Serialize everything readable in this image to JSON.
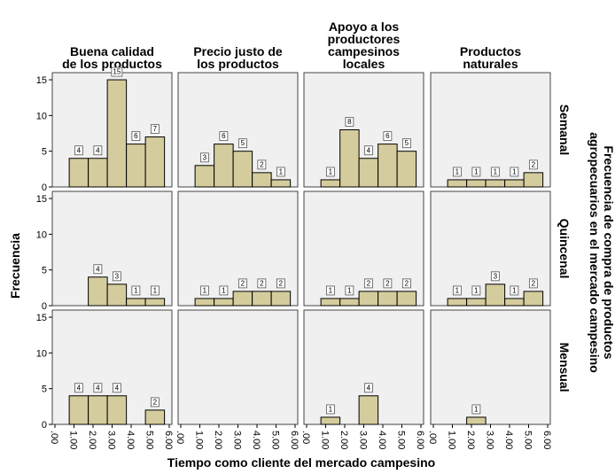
{
  "chart_data": {
    "type": "bar",
    "kind": "histogram-panel-grid",
    "xlabel": "Tiempo como cliente del mercado campesino",
    "ylabel": "Frecuencia",
    "row_group_title": [
      "Frecuencia de compra de productos",
      "agropecuarios en el mercado campesino"
    ],
    "columns": [
      {
        "title_lines": [
          "Buena calidad",
          "de los productos"
        ]
      },
      {
        "title_lines": [
          "Precio justo de",
          "los productos"
        ]
      },
      {
        "title_lines": [
          "Apoyo a los",
          "productores",
          "campesinos",
          "locales"
        ]
      },
      {
        "title_lines": [
          "Productos",
          "naturales"
        ]
      }
    ],
    "rows": [
      "Semanal",
      "Quincenal",
      "Mensual"
    ],
    "x_ticks": [
      ".00",
      "1.00",
      "2.00",
      "3.00",
      "4.00",
      "5.00",
      "6.00"
    ],
    "xlim": [
      0,
      6
    ],
    "y_ticks": [
      0,
      5,
      10,
      15
    ],
    "ylim": [
      0,
      16
    ],
    "bar_edges": [
      0.75,
      1.75,
      2.75,
      3.75,
      4.75,
      5.75
    ],
    "panels": [
      [
        [
          {
            "bin": 1,
            "value": 4
          },
          {
            "bin": 2,
            "value": 4
          },
          {
            "bin": 3,
            "value": 15
          },
          {
            "bin": 4,
            "value": 6
          },
          {
            "bin": 5,
            "value": 7
          }
        ],
        [
          {
            "bin": 1,
            "value": 3
          },
          {
            "bin": 2,
            "value": 6
          },
          {
            "bin": 3,
            "value": 5
          },
          {
            "bin": 4,
            "value": 2
          },
          {
            "bin": 5,
            "value": 1
          }
        ],
        [
          {
            "bin": 1,
            "value": 1
          },
          {
            "bin": 2,
            "value": 8
          },
          {
            "bin": 3,
            "value": 4
          },
          {
            "bin": 4,
            "value": 6
          },
          {
            "bin": 5,
            "value": 5
          }
        ],
        [
          {
            "bin": 1,
            "value": 1
          },
          {
            "bin": 2,
            "value": 1
          },
          {
            "bin": 3,
            "value": 1
          },
          {
            "bin": 4,
            "value": 1
          },
          {
            "bin": 5,
            "value": 2
          }
        ]
      ],
      [
        [
          {
            "bin": 2,
            "value": 4
          },
          {
            "bin": 3,
            "value": 3
          },
          {
            "bin": 4,
            "value": 1
          },
          {
            "bin": 5,
            "value": 1
          }
        ],
        [
          {
            "bin": 1,
            "value": 1
          },
          {
            "bin": 2,
            "value": 1
          },
          {
            "bin": 3,
            "value": 2
          },
          {
            "bin": 4,
            "value": 2
          },
          {
            "bin": 5,
            "value": 2
          }
        ],
        [
          {
            "bin": 1,
            "value": 1
          },
          {
            "bin": 2,
            "value": 1
          },
          {
            "bin": 3,
            "value": 2
          },
          {
            "bin": 4,
            "value": 2
          },
          {
            "bin": 5,
            "value": 2
          }
        ],
        [
          {
            "bin": 1,
            "value": 1
          },
          {
            "bin": 2,
            "value": 1
          },
          {
            "bin": 3,
            "value": 3
          },
          {
            "bin": 4,
            "value": 1
          },
          {
            "bin": 5,
            "value": 2
          }
        ]
      ],
      [
        [
          {
            "bin": 1,
            "value": 4
          },
          {
            "bin": 2,
            "value": 4
          },
          {
            "bin": 3,
            "value": 4
          },
          {
            "bin": 5,
            "value": 2
          }
        ],
        [],
        [
          {
            "bin": 1,
            "value": 1
          },
          {
            "bin": 3,
            "value": 4
          }
        ],
        [
          {
            "bin": 2,
            "value": 1
          }
        ]
      ]
    ],
    "grid": false,
    "legend": "none",
    "colors": {
      "bar_fill": "#d4cc9c",
      "bar_stroke": "#000000",
      "panel_fill": "#f0f0f0",
      "panel_stroke": "#444444"
    }
  }
}
